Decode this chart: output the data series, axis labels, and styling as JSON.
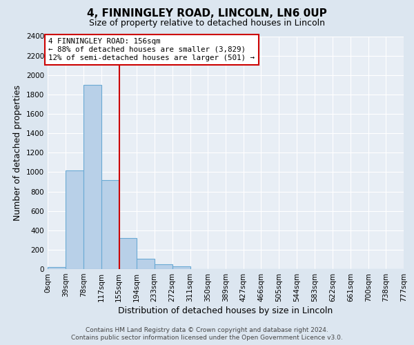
{
  "title": "4, FINNINGLEY ROAD, LINCOLN, LN6 0UP",
  "subtitle": "Size of property relative to detached houses in Lincoln",
  "xlabel": "Distribution of detached houses by size in Lincoln",
  "ylabel": "Number of detached properties",
  "bin_edges": [
    0,
    39,
    78,
    117,
    155,
    194,
    233,
    272,
    311,
    350,
    389,
    427,
    466,
    505,
    544,
    583,
    622,
    661,
    700,
    738,
    777
  ],
  "bin_labels": [
    "0sqm",
    "39sqm",
    "78sqm",
    "117sqm",
    "155sqm",
    "194sqm",
    "233sqm",
    "272sqm",
    "311sqm",
    "350sqm",
    "389sqm",
    "427sqm",
    "466sqm",
    "505sqm",
    "544sqm",
    "583sqm",
    "622sqm",
    "661sqm",
    "700sqm",
    "738sqm",
    "777sqm"
  ],
  "bar_heights": [
    20,
    1020,
    1900,
    920,
    320,
    105,
    50,
    25,
    0,
    0,
    0,
    0,
    0,
    0,
    0,
    0,
    0,
    0,
    0,
    0
  ],
  "bar_color": "#b8d0e8",
  "bar_edge_color": "#6aaad4",
  "vline_x": 156,
  "vline_color": "#cc0000",
  "ylim": [
    0,
    2400
  ],
  "yticks": [
    0,
    200,
    400,
    600,
    800,
    1000,
    1200,
    1400,
    1600,
    1800,
    2000,
    2200,
    2400
  ],
  "annotation_box_text_line1": "4 FINNINGLEY ROAD: 156sqm",
  "annotation_box_text_line2": "← 88% of detached houses are smaller (3,829)",
  "annotation_box_text_line3": "12% of semi-detached houses are larger (501) →",
  "annotation_box_color": "#ffffff",
  "annotation_box_edge_color": "#cc0000",
  "footer_line1": "Contains HM Land Registry data © Crown copyright and database right 2024.",
  "footer_line2": "Contains public sector information licensed under the Open Government Licence v3.0.",
  "background_color": "#dce6f0",
  "plot_bg_color": "#e8eef5",
  "grid_color": "#ffffff",
  "title_fontsize": 11,
  "subtitle_fontsize": 9,
  "axis_label_fontsize": 9,
  "tick_fontsize": 7.5,
  "footer_fontsize": 6.5
}
